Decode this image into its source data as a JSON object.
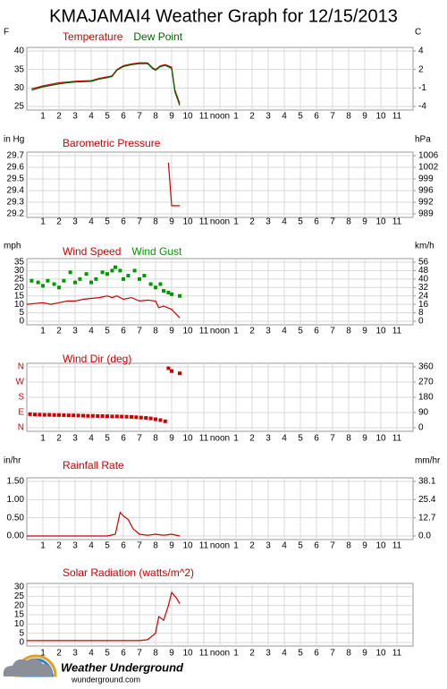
{
  "title": "KMAJAMAI4 Weather Graph for 12/15/2013",
  "footer": {
    "brand": "Weather Underground",
    "site": "wunderground.com"
  },
  "chart_data": [
    {
      "type": "line",
      "ylabel": "F",
      "y2label": "C",
      "xlim": [
        0,
        24
      ],
      "xticks": [
        1,
        2,
        3,
        4,
        5,
        6,
        7,
        8,
        9,
        10,
        11,
        {
          "value": 12,
          "label": "noon"
        },
        {
          "value": 13,
          "label": "1"
        },
        {
          "value": 14,
          "label": "2"
        },
        {
          "value": 15,
          "label": "3"
        },
        {
          "value": 16,
          "label": "4"
        },
        {
          "value": 17,
          "label": "5"
        },
        {
          "value": 18,
          "label": "6"
        },
        {
          "value": 19,
          "label": "7"
        },
        {
          "value": 20,
          "label": "8"
        },
        {
          "value": 21,
          "label": "9"
        },
        {
          "value": 22,
          "label": "10"
        },
        {
          "value": 23,
          "label": "11"
        }
      ],
      "ylim": [
        25,
        40
      ],
      "yticks": [
        25,
        30,
        35,
        40
      ],
      "y2lim": [
        -3.89,
        4.44
      ],
      "y2ticks": [
        {
          "value": -3.89,
          "label": "-4"
        },
        {
          "value": -1.11,
          "label": "-1"
        },
        {
          "value": 1.67,
          "label": "2"
        },
        {
          "value": 4.44,
          "label": "4"
        }
      ],
      "grid": true,
      "series": [
        {
          "name": "Temperature",
          "color": "#cc0000",
          "x": [
            0.3,
            0.7,
            1,
            1.5,
            2,
            2.5,
            3,
            3.5,
            4,
            4.5,
            5,
            5.3,
            5.6,
            6,
            6.5,
            7,
            7.5,
            7.8,
            8,
            8.3,
            8.6,
            9,
            9.2,
            9.5
          ],
          "values": [
            29.8,
            30.2,
            30.6,
            31.0,
            31.4,
            31.6,
            31.8,
            31.9,
            32.0,
            32.6,
            33.0,
            33.3,
            35.0,
            36.0,
            36.5,
            36.8,
            36.8,
            35.5,
            35.0,
            36.0,
            36.3,
            35.6,
            29.5,
            25.8
          ]
        },
        {
          "name": "Dew Point",
          "color": "#006600",
          "x": [
            0.3,
            0.7,
            1,
            1.5,
            2,
            2.5,
            3,
            3.5,
            4,
            4.5,
            5,
            5.3,
            5.6,
            6,
            6.5,
            7,
            7.5,
            7.8,
            8,
            8.3,
            8.6,
            9,
            9.2,
            9.5
          ],
          "values": [
            29.4,
            29.9,
            30.3,
            30.7,
            31.1,
            31.4,
            31.6,
            31.7,
            31.8,
            32.4,
            32.8,
            33.1,
            34.8,
            35.8,
            36.3,
            36.6,
            36.6,
            35.3,
            34.8,
            35.8,
            36.1,
            35.3,
            29.0,
            25.3
          ]
        }
      ]
    },
    {
      "type": "line",
      "ylabel": "in Hg",
      "y2label": "hPa",
      "xlim": [
        0,
        24
      ],
      "xticks": [
        1,
        2,
        3,
        4,
        5,
        6,
        7,
        8,
        9,
        10,
        11,
        {
          "value": 12,
          "label": "noon"
        },
        {
          "value": 13,
          "label": "1"
        },
        {
          "value": 14,
          "label": "2"
        },
        {
          "value": 15,
          "label": "3"
        },
        {
          "value": 16,
          "label": "4"
        },
        {
          "value": 17,
          "label": "5"
        },
        {
          "value": 18,
          "label": "6"
        },
        {
          "value": 19,
          "label": "7"
        },
        {
          "value": 20,
          "label": "8"
        },
        {
          "value": 21,
          "label": "9"
        },
        {
          "value": 22,
          "label": "10"
        },
        {
          "value": 23,
          "label": "11"
        }
      ],
      "ylim": [
        29.2,
        29.7
      ],
      "yticks": [
        29.2,
        29.3,
        29.4,
        29.5,
        29.6,
        29.7
      ],
      "y2lim": [
        988.8,
        1005.8
      ],
      "y2ticks": [
        {
          "value": 988.8,
          "label": "989"
        },
        {
          "value": 992.2,
          "label": "992"
        },
        {
          "value": 995.6,
          "label": "996"
        },
        {
          "value": 999.0,
          "label": "999"
        },
        {
          "value": 1002.4,
          "label": "1002"
        },
        {
          "value": 1005.8,
          "label": "1006"
        }
      ],
      "grid": true,
      "series": [
        {
          "name": "Barometric Pressure",
          "color": "#cc0000",
          "x": [
            8.8,
            9.0,
            9.5
          ],
          "values": [
            29.64,
            29.27,
            29.27
          ]
        }
      ]
    },
    {
      "type": "line",
      "ylabel": "mph",
      "y2label": "km/h",
      "xlim": [
        0,
        24
      ],
      "xticks": [
        1,
        2,
        3,
        4,
        5,
        6,
        7,
        8,
        9,
        10,
        11,
        {
          "value": 12,
          "label": "noon"
        },
        {
          "value": 13,
          "label": "1"
        },
        {
          "value": 14,
          "label": "2"
        },
        {
          "value": 15,
          "label": "3"
        },
        {
          "value": 16,
          "label": "4"
        },
        {
          "value": 17,
          "label": "5"
        },
        {
          "value": 18,
          "label": "6"
        },
        {
          "value": 19,
          "label": "7"
        },
        {
          "value": 20,
          "label": "8"
        },
        {
          "value": 21,
          "label": "9"
        },
        {
          "value": 22,
          "label": "10"
        },
        {
          "value": 23,
          "label": "11"
        }
      ],
      "ylim": [
        0,
        35
      ],
      "yticks": [
        0,
        5,
        10,
        15,
        20,
        25,
        30,
        35
      ],
      "y2lim": [
        0,
        56
      ],
      "y2ticks": [
        0,
        8,
        16,
        24,
        32,
        40,
        48,
        56
      ],
      "grid": true,
      "series": [
        {
          "name": "Wind Speed",
          "color": "#cc0000",
          "x": [
            0,
            0.5,
            1,
            1.5,
            2,
            2.5,
            3,
            3.5,
            4,
            4.5,
            5,
            5.3,
            5.6,
            6,
            6.5,
            7,
            7.5,
            8,
            8.2,
            8.5,
            9,
            9.5
          ],
          "values": [
            10,
            10.5,
            11,
            10,
            11,
            12,
            12,
            13,
            13.5,
            14,
            15,
            14,
            15,
            13,
            14,
            12,
            12.5,
            12,
            8,
            9,
            7,
            2
          ]
        },
        {
          "name": "Wind Gust",
          "color": "#009900",
          "type": "scatter",
          "x": [
            0.3,
            0.7,
            1,
            1.3,
            1.7,
            2,
            2.3,
            2.7,
            3,
            3.3,
            3.7,
            4,
            4.3,
            4.7,
            5,
            5.3,
            5.5,
            5.8,
            6,
            6.3,
            6.7,
            7,
            7.3,
            7.7,
            8,
            8.3,
            8.5,
            8.8,
            9,
            9.5
          ],
          "values": [
            24,
            23,
            21,
            24,
            22,
            20,
            24,
            29,
            23,
            25,
            28,
            23,
            25,
            29,
            28,
            30,
            32,
            30,
            25,
            27,
            30,
            25,
            27,
            22,
            20,
            22,
            18,
            17,
            16,
            15
          ]
        }
      ]
    },
    {
      "type": "scatter",
      "ytick_color": "#cc0000",
      "xlim": [
        0,
        24
      ],
      "xticks": [
        1,
        2,
        3,
        4,
        5,
        6,
        7,
        8,
        9,
        10,
        11,
        {
          "value": 12,
          "label": "noon"
        },
        {
          "value": 13,
          "label": "1"
        },
        {
          "value": 14,
          "label": "2"
        },
        {
          "value": 15,
          "label": "3"
        },
        {
          "value": 16,
          "label": "4"
        },
        {
          "value": 17,
          "label": "5"
        },
        {
          "value": 18,
          "label": "6"
        },
        {
          "value": 19,
          "label": "7"
        },
        {
          "value": 20,
          "label": "8"
        },
        {
          "value": 21,
          "label": "9"
        },
        {
          "value": 22,
          "label": "10"
        },
        {
          "value": 23,
          "label": "11"
        }
      ],
      "ylim": [
        0,
        360
      ],
      "yticks": [
        {
          "value": 0,
          "label": "N"
        },
        {
          "value": 90,
          "label": "E"
        },
        {
          "value": 180,
          "label": "S"
        },
        {
          "value": 270,
          "label": "W"
        },
        {
          "value": 360,
          "label": "N"
        }
      ],
      "y2lim": [
        0,
        360
      ],
      "y2ticks": [
        0,
        90,
        180,
        270,
        360
      ],
      "grid": true,
      "series": [
        {
          "name": "Wind Dir (deg)",
          "color": "#cc0000",
          "x": [
            0.2,
            0.5,
            0.8,
            1.1,
            1.4,
            1.7,
            2,
            2.3,
            2.6,
            2.9,
            3.2,
            3.5,
            3.8,
            4.1,
            4.4,
            4.7,
            5,
            5.3,
            5.6,
            5.9,
            6.2,
            6.5,
            6.8,
            7.1,
            7.4,
            7.7,
            8,
            8.3,
            8.6,
            8.8,
            9,
            9.5
          ],
          "values": [
            80,
            78,
            77,
            76,
            76,
            75,
            75,
            74,
            73,
            73,
            72,
            71,
            70,
            70,
            69,
            69,
            68,
            67,
            67,
            66,
            65,
            64,
            62,
            60,
            58,
            55,
            50,
            45,
            38,
            352,
            335,
            322
          ]
        }
      ]
    },
    {
      "type": "line",
      "ylabel": "in/hr",
      "y2label": "mm/hr",
      "xlim": [
        0,
        24
      ],
      "xticks": [
        1,
        2,
        3,
        4,
        5,
        6,
        7,
        8,
        9,
        10,
        11,
        {
          "value": 12,
          "label": "noon"
        },
        {
          "value": 13,
          "label": "1"
        },
        {
          "value": 14,
          "label": "2"
        },
        {
          "value": 15,
          "label": "3"
        },
        {
          "value": 16,
          "label": "4"
        },
        {
          "value": 17,
          "label": "5"
        },
        {
          "value": 18,
          "label": "6"
        },
        {
          "value": 19,
          "label": "7"
        },
        {
          "value": 20,
          "label": "8"
        },
        {
          "value": 21,
          "label": "9"
        },
        {
          "value": 22,
          "label": "10"
        },
        {
          "value": 23,
          "label": "11"
        }
      ],
      "ylim": [
        0,
        1.5
      ],
      "yticks": [
        {
          "value": 0,
          "label": "0.00"
        },
        {
          "value": 0.5,
          "label": "0.50"
        },
        {
          "value": 1,
          "label": "1.00"
        },
        {
          "value": 1.5,
          "label": "1.50"
        }
      ],
      "y2lim": [
        0,
        38.1
      ],
      "y2ticks": [
        {
          "value": 0,
          "label": "0.0"
        },
        12.7,
        25.4,
        38.1
      ],
      "grid": true,
      "series": [
        {
          "name": "Rainfall Rate",
          "color": "#cc0000",
          "x": [
            0,
            5,
            5.5,
            5.8,
            6,
            6.3,
            6.6,
            7,
            7.5,
            8,
            8.5,
            9,
            9.5
          ],
          "values": [
            0,
            0,
            0.05,
            0.65,
            0.55,
            0.45,
            0.2,
            0.05,
            0.02,
            0.05,
            0.02,
            0.05,
            0
          ]
        }
      ]
    },
    {
      "type": "line",
      "xlim": [
        0,
        24
      ],
      "xticks": [
        1,
        2,
        3,
        4,
        5,
        6,
        7,
        8,
        9,
        10,
        11,
        {
          "value": 12,
          "label": "noon"
        },
        {
          "value": 13,
          "label": "1"
        },
        {
          "value": 14,
          "label": "2"
        },
        {
          "value": 15,
          "label": "3"
        },
        {
          "value": 16,
          "label": "4"
        },
        {
          "value": 17,
          "label": "5"
        },
        {
          "value": 18,
          "label": "6"
        },
        {
          "value": 19,
          "label": "7"
        },
        {
          "value": 20,
          "label": "8"
        },
        {
          "value": 21,
          "label": "9"
        },
        {
          "value": 22,
          "label": "10"
        },
        {
          "value": 23,
          "label": "11"
        }
      ],
      "ylim": [
        0,
        30
      ],
      "yticks": [
        0,
        5,
        10,
        15,
        20,
        25,
        30
      ],
      "grid": true,
      "series": [
        {
          "name": "Solar Radiation (watts/m^2)",
          "color": "#cc0000",
          "x": [
            0,
            7,
            7.5,
            8,
            8.2,
            8.5,
            8.8,
            9,
            9.3,
            9.5
          ],
          "values": [
            1,
            1,
            1.5,
            5,
            14,
            12,
            20,
            27,
            24,
            21
          ]
        }
      ]
    }
  ]
}
